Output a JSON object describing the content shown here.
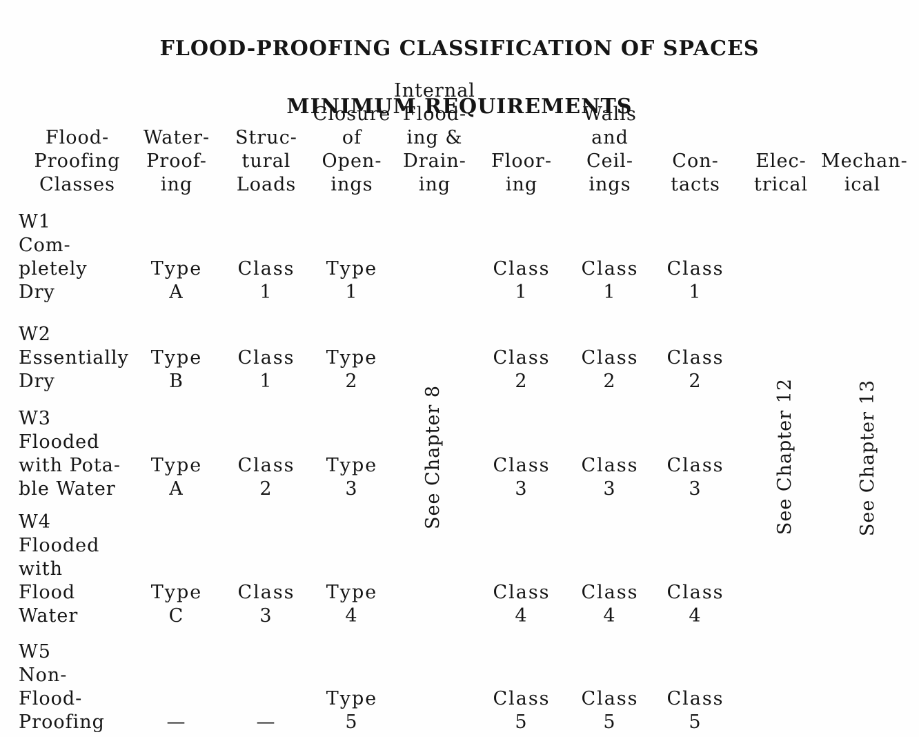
{
  "title": {
    "line1": "FLOOD-PROOFING CLASSIFICATION OF SPACES",
    "line2": "MINIMUM REQUIREMENTS"
  },
  "table": {
    "columns": [
      {
        "id": "classes",
        "header": [
          "Flood-",
          "Proofing",
          "Classes"
        ]
      },
      {
        "id": "waterproofing",
        "header": [
          "Water-",
          "Proof-",
          "ing"
        ]
      },
      {
        "id": "structural",
        "header": [
          "Struc-",
          "tural",
          "Loads"
        ]
      },
      {
        "id": "closure",
        "header": [
          "Closure",
          "of",
          "Open-",
          "ings"
        ]
      },
      {
        "id": "internal",
        "header": [
          "Internal",
          "Flood-",
          "ing &",
          "Drain-",
          "ing"
        ]
      },
      {
        "id": "flooring",
        "header": [
          "Floor-",
          "ing"
        ]
      },
      {
        "id": "walls",
        "header": [
          "Walls",
          "and",
          "Ceil-",
          "ings"
        ]
      },
      {
        "id": "contacts",
        "header": [
          "Con-",
          "tacts"
        ]
      },
      {
        "id": "electrical",
        "header": [
          "Elec-",
          "trical"
        ]
      },
      {
        "id": "mechanical",
        "header": [
          "Mechan-",
          "ical"
        ]
      }
    ],
    "rows": [
      {
        "id": "W1",
        "label": [
          "W1",
          "Com-",
          "pletely",
          "Dry"
        ],
        "cells": {
          "waterproofing": [
            "Type",
            "A"
          ],
          "structural": [
            "Class",
            "1"
          ],
          "closure": [
            "Type",
            "1"
          ],
          "flooring": [
            "Class",
            "1"
          ],
          "walls": [
            "Class",
            "1"
          ],
          "contacts": [
            "Class",
            "1"
          ]
        }
      },
      {
        "id": "W2",
        "label": [
          "W2",
          "Essentially",
          "Dry"
        ],
        "cells": {
          "waterproofing": [
            "Type",
            "B"
          ],
          "structural": [
            "Class",
            "1"
          ],
          "closure": [
            "Type",
            "2"
          ],
          "flooring": [
            "Class",
            "2"
          ],
          "walls": [
            "Class",
            "2"
          ],
          "contacts": [
            "Class",
            "2"
          ]
        }
      },
      {
        "id": "W3",
        "label": [
          "W3",
          "Flooded",
          "with Pota-",
          "ble Water"
        ],
        "cells": {
          "waterproofing": [
            "Type",
            "A"
          ],
          "structural": [
            "Class",
            "2"
          ],
          "closure": [
            "Type",
            "3"
          ],
          "flooring": [
            "Class",
            "3"
          ],
          "walls": [
            "Class",
            "3"
          ],
          "contacts": [
            "Class",
            "3"
          ]
        }
      },
      {
        "id": "W4",
        "label": [
          "W4",
          "Flooded",
          "with",
          "Flood",
          "Water"
        ],
        "cells": {
          "waterproofing": [
            "Type",
            "C"
          ],
          "structural": [
            "Class",
            "3"
          ],
          "closure": [
            "Type",
            "4"
          ],
          "flooring": [
            "Class",
            "4"
          ],
          "walls": [
            "Class",
            "4"
          ],
          "contacts": [
            "Class",
            "4"
          ]
        }
      },
      {
        "id": "W5",
        "label": [
          "W5",
          "Non-",
          "Flood-",
          "Proofing"
        ],
        "cells": {
          "waterproofing": "—",
          "structural": "—",
          "closure": [
            "Type",
            "5"
          ],
          "flooring": [
            "Class",
            "5"
          ],
          "walls": [
            "Class",
            "5"
          ],
          "contacts": [
            "Class",
            "5"
          ]
        }
      }
    ],
    "notes": [
      {
        "text": "See Chapter 8",
        "column": "internal"
      },
      {
        "text": "See Chapter 12",
        "column": "electrical"
      },
      {
        "text": "See Chapter 13",
        "column": "mechanical"
      }
    ]
  },
  "colors": {
    "ink": "#151515",
    "paper": "#fefefe"
  }
}
